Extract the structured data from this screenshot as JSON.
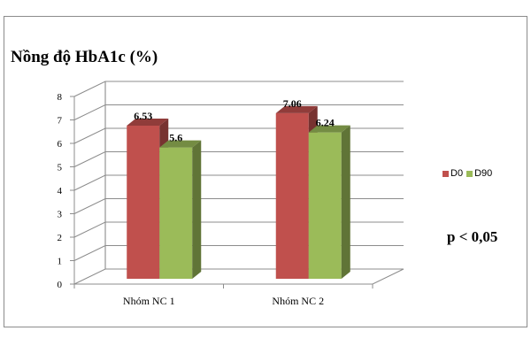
{
  "chart_data": {
    "type": "bar",
    "title": "Nồng độ HbA1c (%)",
    "categories": [
      "Nhóm NC 1",
      "Nhóm NC 2"
    ],
    "series": [
      {
        "name": "D0",
        "values": [
          6.53,
          7.06
        ],
        "labels": [
          "6.53",
          "7.06"
        ],
        "color": "#c0504d"
      },
      {
        "name": "D90",
        "values": [
          5.6,
          6.24
        ],
        "labels": [
          "5.6",
          "6.24"
        ],
        "color": "#9bbb59"
      }
    ],
    "ylim": [
      0,
      8
    ],
    "yticks": [
      "0",
      "1",
      "2",
      "3",
      "4",
      "5",
      "6",
      "7",
      "8"
    ],
    "grid": true,
    "legend_position": "right",
    "annotation": "p < 0,05",
    "xlabel": "",
    "ylabel": ""
  }
}
